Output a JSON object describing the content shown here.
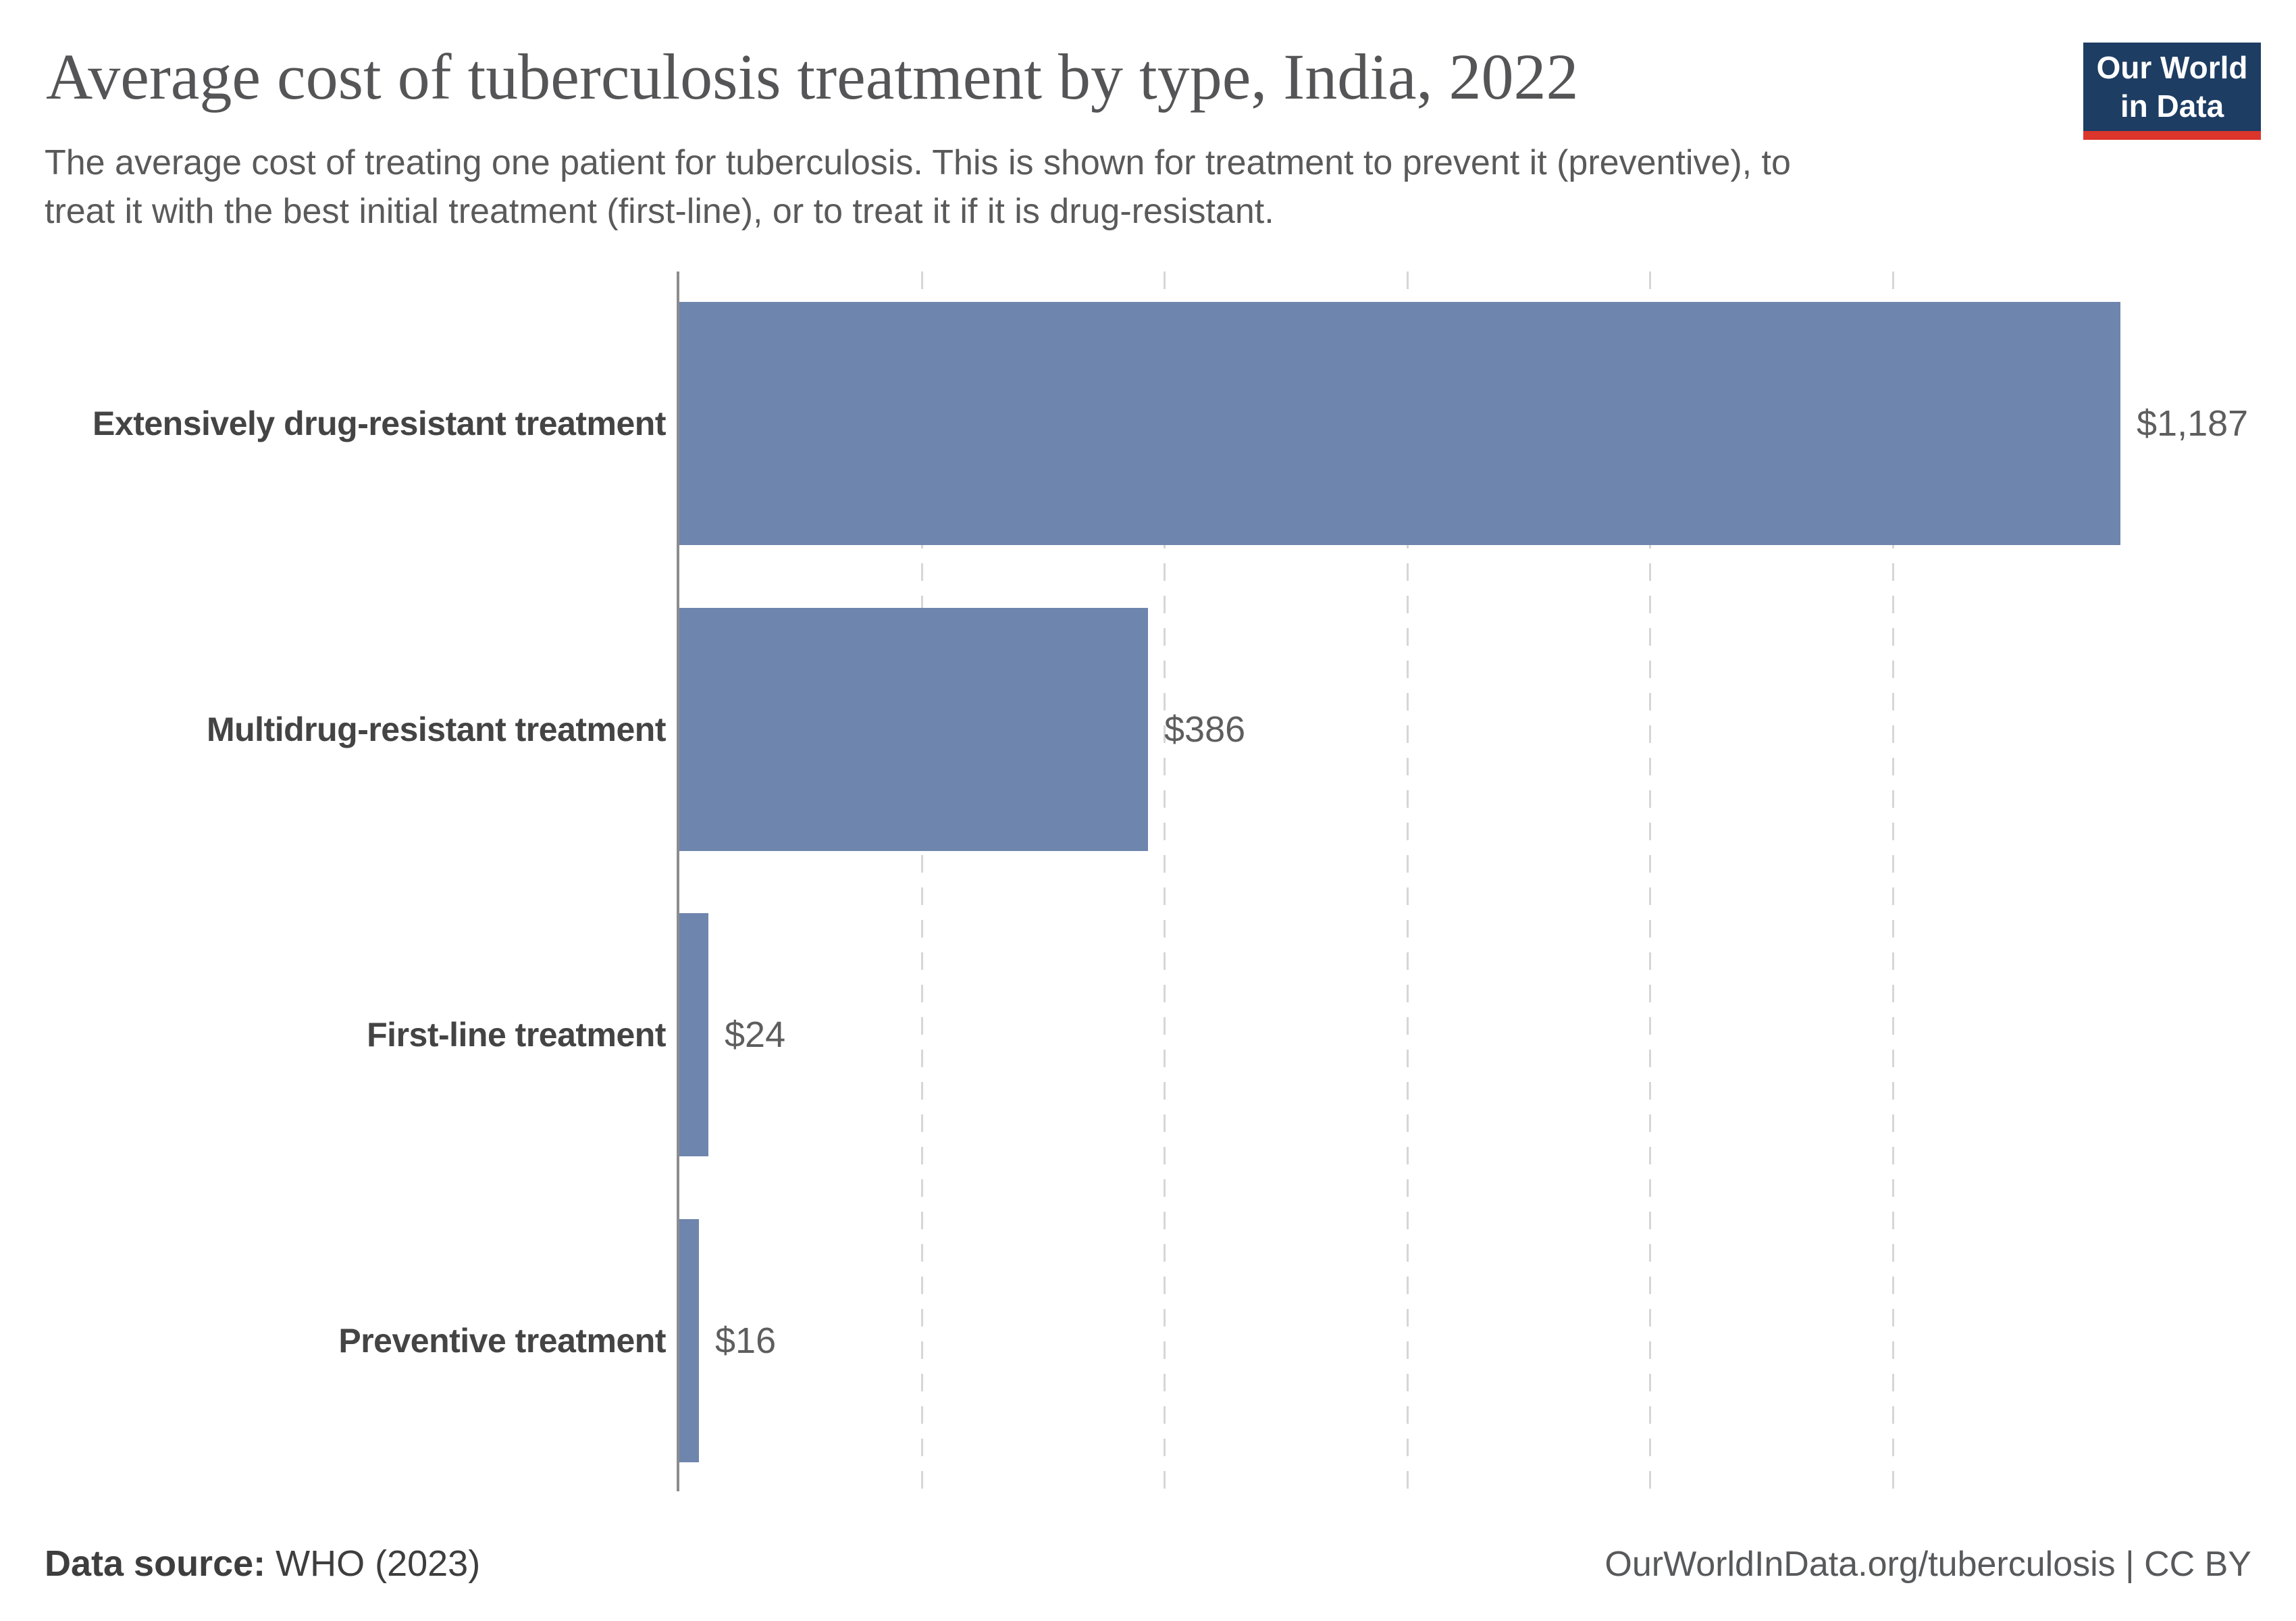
{
  "header": {
    "title": "Average cost of tuberculosis treatment by type, India, 2022",
    "subtitle_lines": [
      "The average cost of treating one patient for tuberculosis. This is shown for treatment to prevent it (preventive), to",
      "treat it with the best initial treatment (first-line), or to treat it if it is drug-resistant."
    ]
  },
  "logo": {
    "line1": "Our World",
    "line2": "in Data",
    "bg_color": "#1d3d63",
    "accent_color": "#dc352c"
  },
  "chart_data": {
    "type": "bar",
    "orientation": "horizontal",
    "title": "Average cost of tuberculosis treatment by type, India, 2022",
    "unit": "US dollars",
    "categories": [
      "Extensively drug-resistant treatment",
      "Multidrug-resistant treatment",
      "First-line treatment",
      "Preventive treatment"
    ],
    "values": [
      1187,
      386,
      24,
      16
    ],
    "value_labels": [
      "$1,187",
      "$386",
      "$24",
      "$16"
    ],
    "xlim": [
      0,
      1200
    ],
    "gridline_values": [
      200,
      400,
      600,
      800,
      1000
    ],
    "grid_style": "dashed",
    "legend": "none",
    "bar_color": "#6e85ad",
    "axis_color": "#8c8c8c",
    "gridline_color": "#d6d6d6"
  },
  "footer": {
    "source_prefix": "Data source:",
    "source_text": " WHO (2023)",
    "attribution": "OurWorldInData.org/tuberculosis | CC BY"
  }
}
